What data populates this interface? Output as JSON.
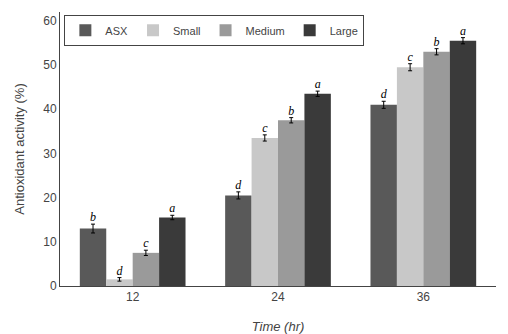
{
  "chart_data": {
    "type": "bar",
    "xlabel": "Time (hr)",
    "ylabel": "Antioxidant activity (%)",
    "categories": [
      12,
      24,
      36
    ],
    "series": [
      {
        "name": "ASX",
        "color": "#595959",
        "values": [
          13.0,
          20.5,
          41.0
        ],
        "errors": [
          1.0,
          0.8,
          0.8
        ],
        "labels": [
          "b",
          "d",
          "d"
        ]
      },
      {
        "name": "Small",
        "color": "#c8c8c8",
        "values": [
          1.5,
          33.5,
          49.5
        ],
        "errors": [
          0.4,
          0.7,
          0.8
        ],
        "labels": [
          "d",
          "c",
          "c"
        ]
      },
      {
        "name": "Medium",
        "color": "#9a9a9a",
        "values": [
          7.5,
          37.5,
          53.0
        ],
        "errors": [
          0.6,
          0.6,
          0.7
        ],
        "labels": [
          "c",
          "b",
          "b"
        ]
      },
      {
        "name": "Large",
        "color": "#3a3a3a",
        "values": [
          15.5,
          43.5,
          55.5
        ],
        "errors": [
          0.5,
          0.6,
          0.7
        ],
        "labels": [
          "a",
          "a",
          "a"
        ]
      }
    ],
    "ylim": [
      0,
      62
    ],
    "yticks": [
      0,
      10,
      20,
      30,
      40,
      50,
      60
    ],
    "grid": false,
    "legend": "upper left"
  }
}
